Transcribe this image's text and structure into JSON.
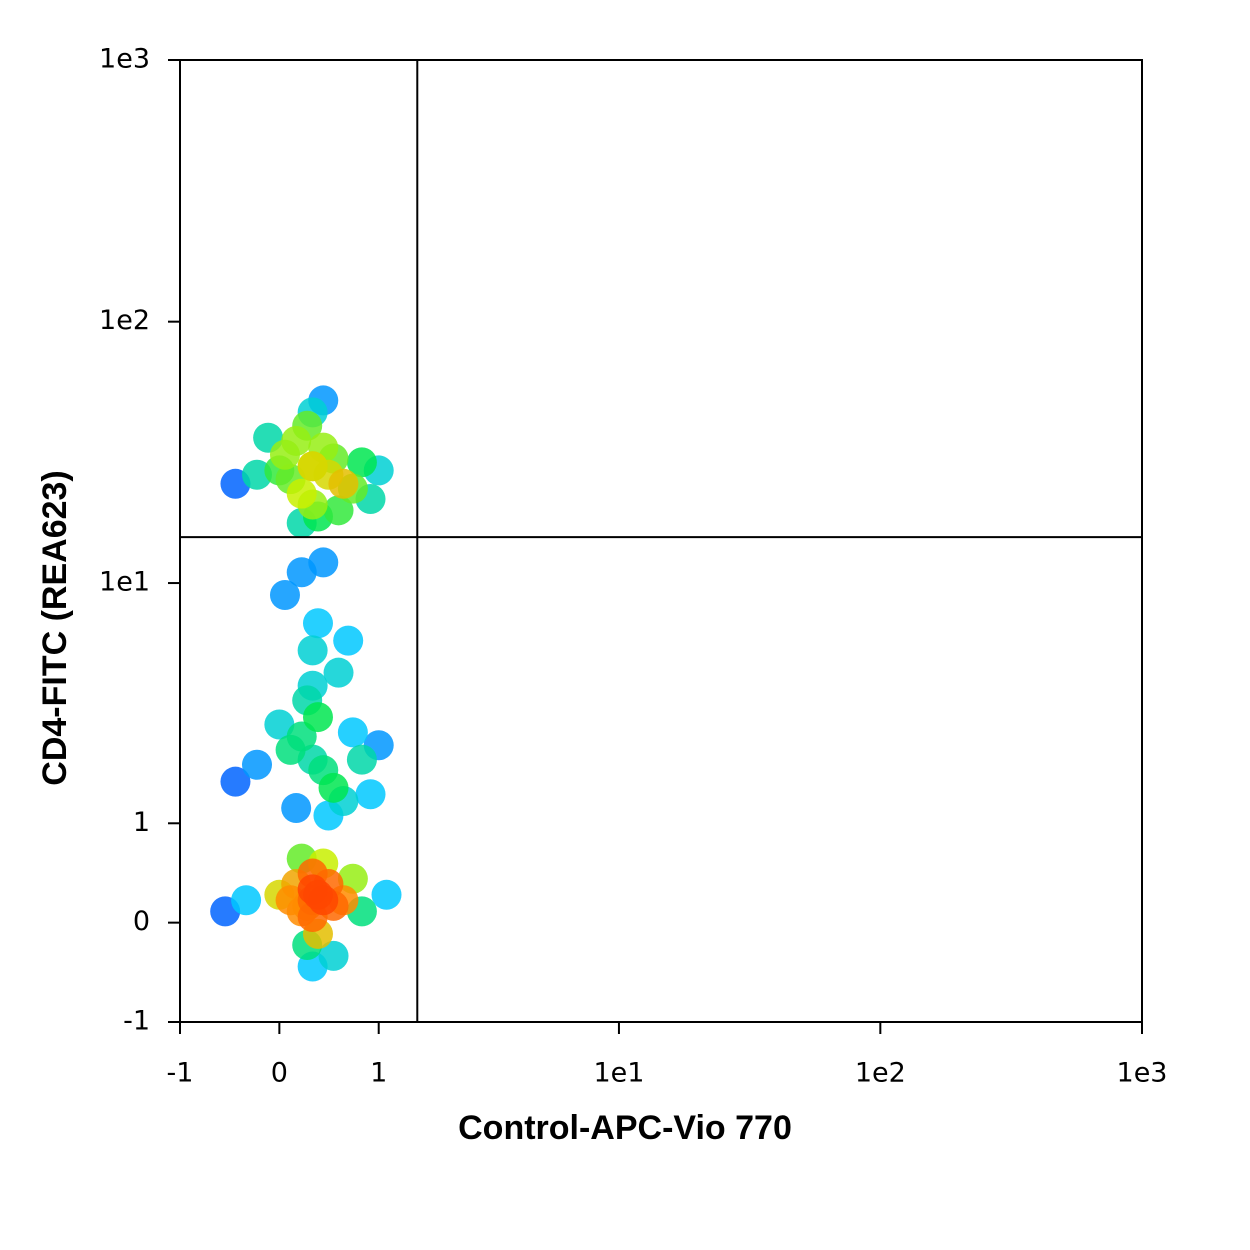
{
  "chart_data": {
    "type": "scatter",
    "xlabel": "Control-APC-Vio 770",
    "ylabel": "CD4-FITC (REA623)",
    "scale": "biexponential",
    "colormap": "jet",
    "xlim": [
      -1,
      1000
    ],
    "ylim": [
      -1,
      1000
    ],
    "xticks": [
      -1,
      0,
      1,
      {
        "value": 10,
        "label": "1e1"
      },
      {
        "value": 100,
        "label": "1e2"
      },
      {
        "value": 1000,
        "label": "1e3"
      }
    ],
    "yticks": [
      -1,
      0,
      1,
      {
        "value": 10,
        "label": "1e1"
      },
      {
        "value": 100,
        "label": "1e2"
      },
      {
        "value": 1000,
        "label": "1e3"
      }
    ],
    "gate": {
      "x": 1.55,
      "y": 15
    },
    "x": [
      0.3,
      0.1,
      0.5,
      0.2,
      0.4,
      0.0,
      0.6,
      0.3,
      -0.2,
      0.8,
      0.25,
      0.35,
      0.15,
      0.45,
      -0.4,
      1.0,
      0.3,
      0.55,
      0.05,
      0.7,
      -0.1,
      0.9,
      0.3,
      0.2,
      0.4,
      0.3,
      0.4,
      0.2,
      0.5,
      0.1,
      0.35,
      0.6,
      0.0,
      0.8,
      -0.2,
      0.3,
      0.45,
      0.25,
      0.7,
      -0.4,
      1.0,
      0.3,
      0.15,
      0.55,
      0.9,
      0.35,
      0.05,
      0.65,
      0.4,
      0.2,
      0.3,
      0.25,
      0.35,
      0.2,
      0.4,
      0.3,
      0.1,
      0.5,
      0.3,
      0.0,
      0.6,
      0.15,
      0.45,
      0.3,
      -0.3,
      0.8,
      0.25,
      0.35,
      0.7,
      -0.5,
      1.1,
      0.3,
      0.2,
      0.4,
      0.5
    ],
    "y": [
      28,
      25,
      30,
      22,
      33,
      27,
      24,
      20,
      26,
      29,
      40,
      18,
      35,
      26,
      24,
      27,
      45,
      19,
      31,
      23,
      36,
      21,
      28,
      17,
      50,
      2,
      1.8,
      2.5,
      1.5,
      2.2,
      3,
      1.3,
      2.8,
      2,
      1.9,
      4,
      1.1,
      3.5,
      2.6,
      1.6,
      2.3,
      5.5,
      1.2,
      4.5,
      1.4,
      7,
      9,
      6,
      12,
      11,
      0.2,
      0.15,
      0.25,
      0.1,
      0.2,
      0.3,
      0.2,
      0.15,
      0.05,
      0.25,
      0.2,
      0.35,
      0.35,
      0.45,
      0.2,
      0.1,
      -0.2,
      -0.1,
      0.4,
      0.1,
      0.25,
      -0.4,
      0.6,
      0.55,
      -0.3
    ]
  }
}
